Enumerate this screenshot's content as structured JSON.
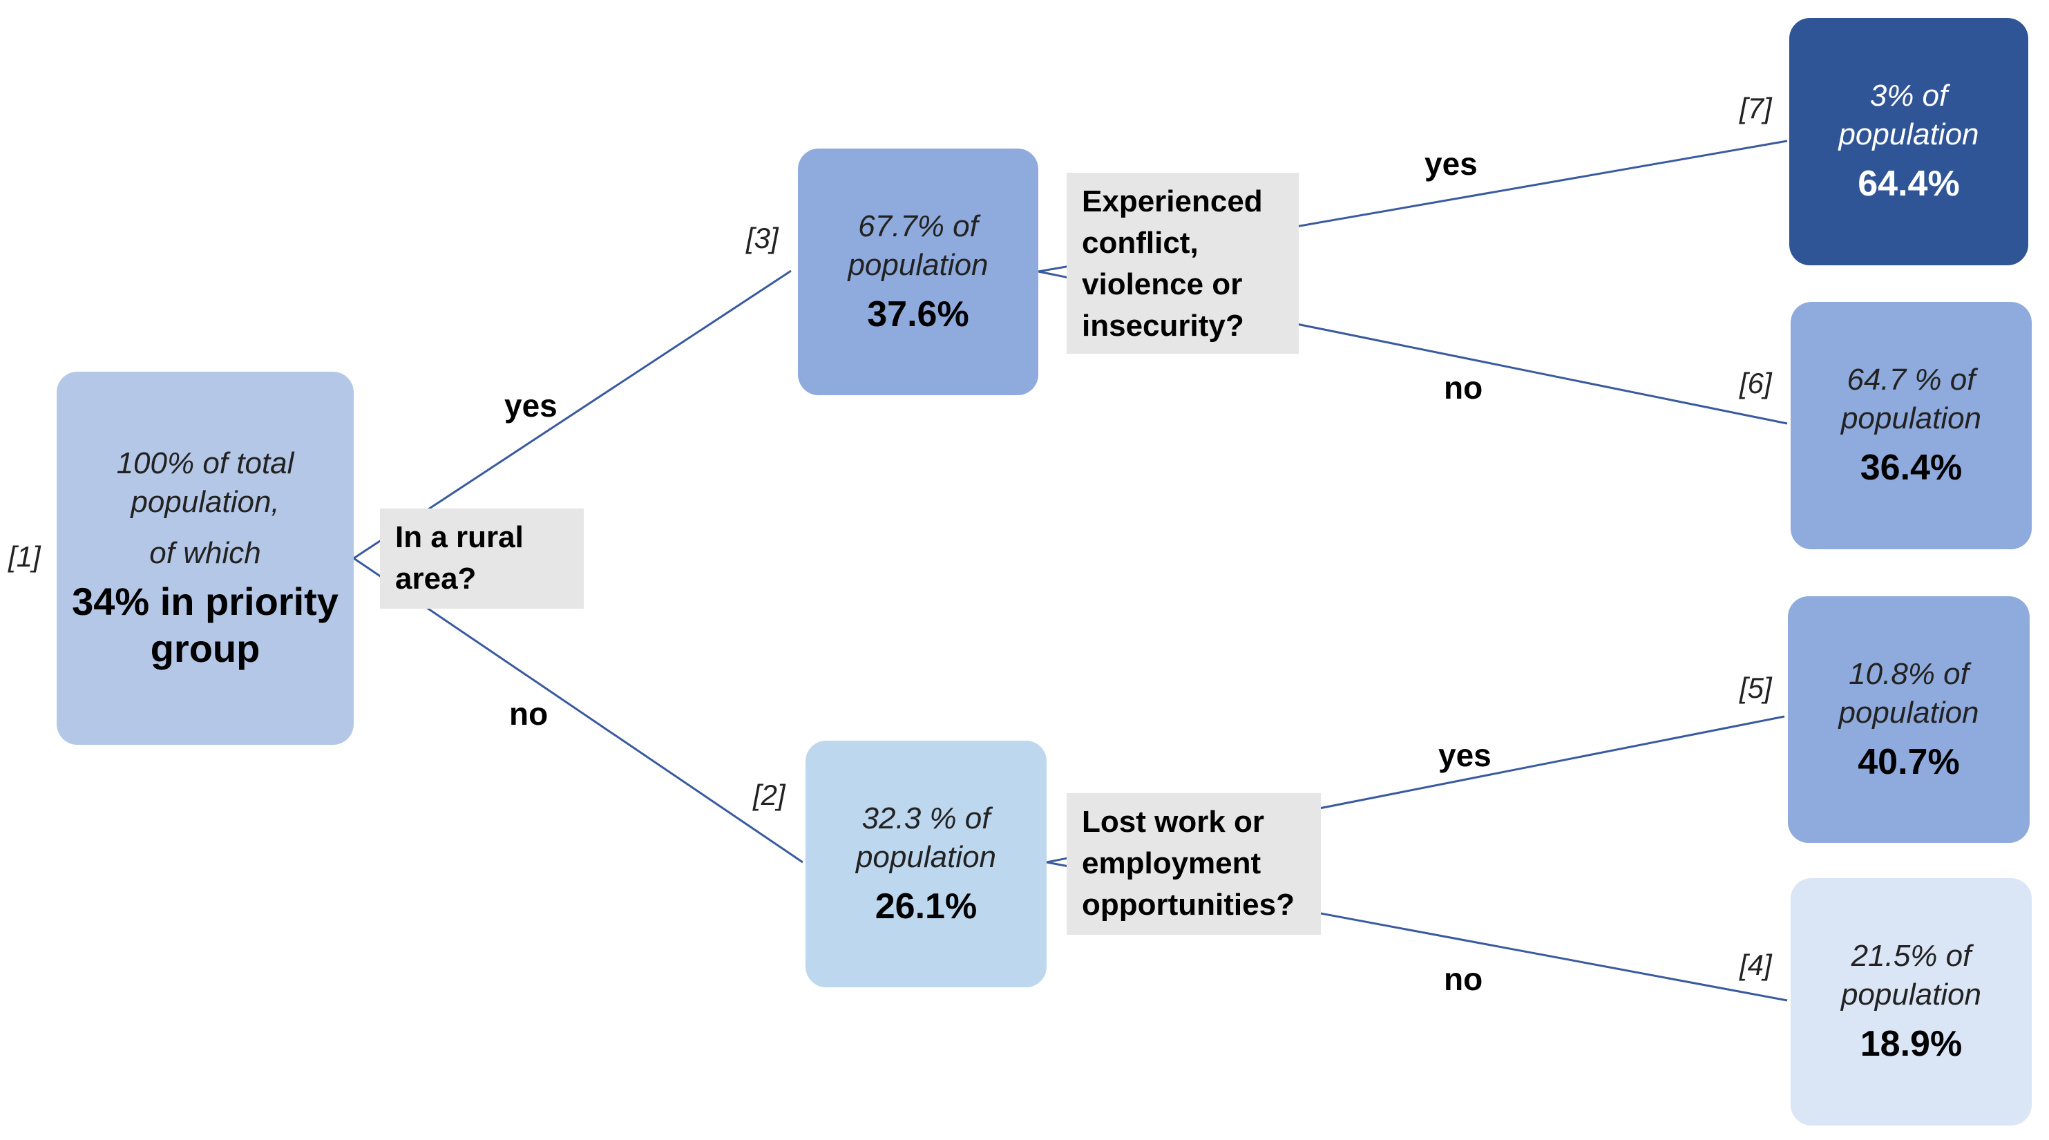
{
  "colors": {
    "edge": "#3a5aa0",
    "root_fill": "#b4c7e7",
    "mid_fill": "#8faadc",
    "light_fill": "#bdd7ee",
    "dark_fill": "#2f5597",
    "pale_fill": "#dae5f5",
    "question_fill": "#e6e6e6"
  },
  "root": {
    "ref": "[1]",
    "line1": "100% of total",
    "line2": "population,",
    "line3": "of which",
    "value_line1": "34% in priority",
    "value_line2": "group"
  },
  "question_rural": {
    "line1": "In a rural",
    "line2": "area?"
  },
  "rural_yes": "yes",
  "rural_no": "no",
  "node3": {
    "ref": "[3]",
    "line1": "67.7% of",
    "line2": "population",
    "value": "37.6%"
  },
  "node2": {
    "ref": "[2]",
    "line1": "32.3 % of",
    "line2": "population",
    "value": "26.1%"
  },
  "question_conflict": {
    "line1": "Experienced",
    "line2": "conflict,",
    "line3": "violence or",
    "line4": "insecurity?"
  },
  "conflict_yes": "yes",
  "conflict_no": "no",
  "question_work": {
    "line1": "Lost work or",
    "line2": "employment",
    "line3": "opportunities?"
  },
  "work_yes": "yes",
  "work_no": "no",
  "node7": {
    "ref": "[7]",
    "line1": "3% of",
    "line2": "population",
    "value": "64.4%"
  },
  "node6": {
    "ref": "[6]",
    "line1": "64.7 % of",
    "line2": "population",
    "value": "36.4%"
  },
  "node5": {
    "ref": "[5]",
    "line1": "10.8% of",
    "line2": "population",
    "value": "40.7%"
  },
  "node4": {
    "ref": "[4]",
    "line1": "21.5% of",
    "line2": "population",
    "value": "18.9%"
  }
}
